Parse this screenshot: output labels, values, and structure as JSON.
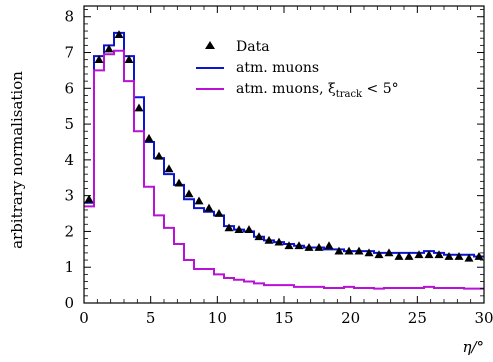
{
  "chart_data": {
    "type": "line",
    "title": "",
    "xlabel": "η/°",
    "ylabel": "arbitrary normalisation",
    "xlim": [
      0,
      30
    ],
    "ylim": [
      0,
      8.3
    ],
    "xticks": [
      "0",
      "5",
      "10",
      "15",
      "20",
      "25",
      "30"
    ],
    "yticks": [
      "0",
      "1",
      "2",
      "3",
      "4",
      "5",
      "6",
      "7",
      "8"
    ],
    "bin_edges": [
      0,
      0.75,
      1.5,
      2.25,
      3.0,
      3.75,
      4.5,
      5.25,
      6.0,
      6.75,
      7.5,
      8.25,
      9.0,
      9.75,
      10.5,
      11.25,
      12.0,
      12.75,
      13.5,
      14.25,
      15.0,
      15.75,
      16.5,
      17.25,
      18.0,
      18.75,
      19.5,
      20.25,
      21.0,
      21.75,
      22.5,
      23.25,
      24.0,
      24.75,
      25.5,
      26.25,
      27.0,
      27.75,
      28.5,
      29.25,
      30.0
    ],
    "legend_position": "top-right",
    "series": [
      {
        "name": "Data",
        "style": "markers",
        "marker": "triangle",
        "color": "#000000",
        "x": [
          0.375,
          1.125,
          1.875,
          2.625,
          3.375,
          4.125,
          4.875,
          5.625,
          6.375,
          7.125,
          7.875,
          8.625,
          9.375,
          10.125,
          10.875,
          11.625,
          12.375,
          13.125,
          13.875,
          14.625,
          15.375,
          16.125,
          16.875,
          17.625,
          18.375,
          19.125,
          19.875,
          20.625,
          21.375,
          22.125,
          22.875,
          23.625,
          24.375,
          25.125,
          25.875,
          26.625,
          27.375,
          28.125,
          28.875,
          29.625
        ],
        "values": [
          2.9,
          6.8,
          7.1,
          7.5,
          6.8,
          5.45,
          4.6,
          4.1,
          3.75,
          3.35,
          3.05,
          2.85,
          2.65,
          2.5,
          2.1,
          2.05,
          2.05,
          1.85,
          1.75,
          1.7,
          1.6,
          1.6,
          1.55,
          1.55,
          1.6,
          1.45,
          1.45,
          1.45,
          1.4,
          1.35,
          1.4,
          1.3,
          1.3,
          1.35,
          1.35,
          1.35,
          1.3,
          1.3,
          1.25,
          1.3
        ]
      },
      {
        "name": "atm. muons",
        "style": "step",
        "color": "#0a14d2",
        "values": [
          2.8,
          6.9,
          7.2,
          7.55,
          6.9,
          5.75,
          4.5,
          4.05,
          3.6,
          3.3,
          2.9,
          2.65,
          2.55,
          2.45,
          2.15,
          2.05,
          2.0,
          1.85,
          1.75,
          1.7,
          1.65,
          1.6,
          1.55,
          1.55,
          1.5,
          1.5,
          1.45,
          1.45,
          1.45,
          1.4,
          1.4,
          1.4,
          1.4,
          1.4,
          1.45,
          1.4,
          1.35,
          1.35,
          1.35,
          1.3
        ]
      },
      {
        "name": "atm. muons, ξtrack < 5°",
        "style": "step",
        "color": "#b712d6",
        "values": [
          2.7,
          6.5,
          6.95,
          7.05,
          6.2,
          4.8,
          3.25,
          2.45,
          2.1,
          1.65,
          1.2,
          0.95,
          0.95,
          0.8,
          0.7,
          0.65,
          0.6,
          0.55,
          0.5,
          0.5,
          0.5,
          0.45,
          0.45,
          0.45,
          0.42,
          0.42,
          0.45,
          0.42,
          0.42,
          0.4,
          0.42,
          0.42,
          0.42,
          0.42,
          0.45,
          0.42,
          0.42,
          0.42,
          0.4,
          0.4
        ]
      }
    ]
  },
  "legend": {
    "data_label": "Data",
    "muons_label": "atm. muons",
    "cut_label_prefix": "atm. muons, ξ",
    "cut_label_sub": "track",
    "cut_label_suffix": " < 5°"
  }
}
